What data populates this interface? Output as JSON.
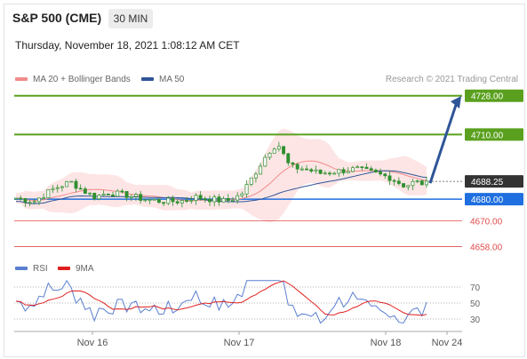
{
  "header": {
    "title": "S&P 500 (CME)",
    "timeframe": "30 MIN",
    "datetime": "Thursday, November 18, 2021 1:08:12 AM CET"
  },
  "legend": {
    "ma20_label": "MA 20 + Bollinger Bands",
    "ma50_label": "MA 50",
    "rsi_label": "RSI",
    "rsi_ma_label": "9MA",
    "credit": "Research © 2021 Trading Central"
  },
  "colors": {
    "ma20": "#f28b8b",
    "ma50": "#2f5597",
    "bands": "#fde0e0",
    "green": "#5aa01e",
    "blue": "#1f6fe0",
    "red": "#e14b4b",
    "candle": "#2f8f2f",
    "current": "#333333",
    "rsi": "#5a7fd0",
    "rsi_ma": "#e02020"
  },
  "chart_data": {
    "type": "candlestick",
    "y_range": [
      4652,
      4732
    ],
    "x_labels": [
      "Nov 16",
      "Nov 17",
      "Nov 18",
      "Nov 24"
    ],
    "levels": [
      {
        "value": 4728.0,
        "label": "4728.00",
        "kind": "resistance"
      },
      {
        "value": 4710.0,
        "label": "4710.00",
        "kind": "resistance"
      },
      {
        "value": 4688.25,
        "label": "4688.25",
        "kind": "current"
      },
      {
        "value": 4680.0,
        "label": "4680.00",
        "kind": "pivot"
      },
      {
        "value": 4670.0,
        "label": "4670.00",
        "kind": "support"
      },
      {
        "value": 4658.0,
        "label": "4658.00",
        "kind": "support"
      }
    ],
    "rsi": {
      "levels": [
        70,
        50,
        30
      ],
      "level_labels": [
        "70",
        "50",
        "30"
      ],
      "range": [
        20,
        80
      ]
    }
  }
}
